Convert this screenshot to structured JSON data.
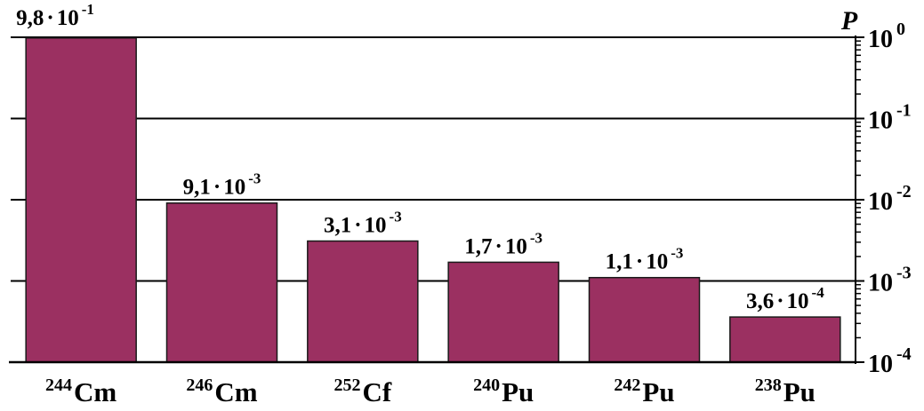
{
  "chart_data": {
    "type": "bar",
    "y_scale": "log",
    "ylabel": "P",
    "ylim": [
      0.0001,
      1
    ],
    "grid": true,
    "y_ticks": [
      {
        "value": 1,
        "base": "10",
        "exp": "0"
      },
      {
        "value": 0.1,
        "base": "10",
        "exp": "-1"
      },
      {
        "value": 0.01,
        "base": "10",
        "exp": "-2"
      },
      {
        "value": 0.001,
        "base": "10",
        "exp": "-3"
      },
      {
        "value": 0.0001,
        "base": "10",
        "exp": "-4"
      }
    ],
    "categories": [
      {
        "mass": "244",
        "symbol": "Cm"
      },
      {
        "mass": "246",
        "symbol": "Cm"
      },
      {
        "mass": "252",
        "symbol": "Cf"
      },
      {
        "mass": "240",
        "symbol": "Pu"
      },
      {
        "mass": "242",
        "symbol": "Pu"
      },
      {
        "mass": "238",
        "symbol": "Pu"
      }
    ],
    "values": [
      0.98,
      0.0091,
      0.0031,
      0.0017,
      0.0011,
      0.00036
    ],
    "data_labels": [
      {
        "mantissa": "9,8",
        "base": "10",
        "exp": "-1"
      },
      {
        "mantissa": "9,1",
        "base": "10",
        "exp": "-3"
      },
      {
        "mantissa": "3,1",
        "base": "10",
        "exp": "-3"
      },
      {
        "mantissa": "1,7",
        "base": "10",
        "exp": "-3"
      },
      {
        "mantissa": "1,1",
        "base": "10",
        "exp": "-3"
      },
      {
        "mantissa": "3,6",
        "base": "10",
        "exp": "-4"
      }
    ],
    "bar_color": "#9b3061"
  }
}
